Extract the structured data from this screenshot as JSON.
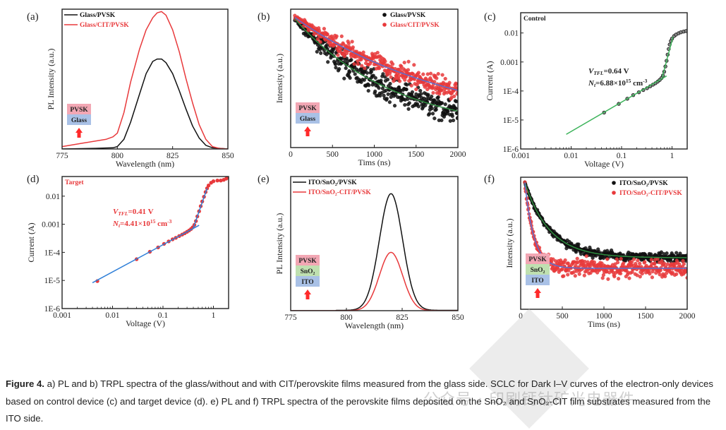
{
  "figure_caption": {
    "label": "Figure 4.",
    "text": " a) PL and b) TRPL spectra of the glass/without and with CIT/perovskite films measured from the glass side. SCLC for Dark I–V curves of the electron-only devices based on control device (c) and target device (d). e) PL and f) TRPL spectra of the perovskite films deposited on the SnO₂ and SnO₂-CIT film substrates measured from the ITO side."
  },
  "watermark": "公众号 · 印刷钙钛矿光电器件",
  "colors": {
    "black": "#111111",
    "red": "#e8393b",
    "green": "#2e8b3e",
    "blue": "#5a6fd0",
    "fit_green": "#3cb35a",
    "fit_blue": "#2f7fd8",
    "pvsk": "#f2a7b4",
    "glass": "#a9c1e6",
    "sno2": "#bfe0b0",
    "ito": "#a9c1e6",
    "arrow": "#ff2a2a"
  },
  "chart_data": [
    {
      "id": "a",
      "panel_label": "(a)",
      "type": "line",
      "xlabel": "Wavelength (nm)",
      "ylabel": "PL Intensity (a.u.)",
      "xlim": [
        775,
        850
      ],
      "ylim": [
        0,
        1.15
      ],
      "xticks": [
        775,
        800,
        825,
        850
      ],
      "legend": {
        "position": "top-left",
        "entries": [
          "Glass/PVSK",
          "Glass/CIT/PVSK"
        ]
      },
      "stack": {
        "layers": [
          "PVSK",
          "Glass"
        ]
      },
      "series": [
        {
          "name": "Glass/PVSK",
          "color": "black",
          "x": [
            775,
            790,
            798,
            800,
            803,
            806,
            810,
            813,
            816,
            818,
            820,
            822,
            825,
            828,
            831,
            834,
            837,
            840,
            843,
            850
          ],
          "y": [
            0,
            0.005,
            0.01,
            0.02,
            0.08,
            0.22,
            0.45,
            0.62,
            0.72,
            0.74,
            0.74,
            0.71,
            0.62,
            0.48,
            0.33,
            0.19,
            0.09,
            0.03,
            0.01,
            0
          ]
        },
        {
          "name": "Glass/CIT/PVSK",
          "color": "red",
          "x": [
            775,
            785,
            795,
            798,
            800,
            803,
            806,
            810,
            813,
            816,
            818,
            820,
            822,
            825,
            828,
            831,
            834,
            837,
            840,
            843,
            846,
            850
          ],
          "y": [
            0.02,
            0.05,
            0.08,
            0.1,
            0.13,
            0.3,
            0.55,
            0.82,
            0.98,
            1.08,
            1.12,
            1.13,
            1.1,
            0.98,
            0.8,
            0.58,
            0.38,
            0.2,
            0.08,
            0.02,
            0.005,
            0
          ]
        }
      ]
    },
    {
      "id": "b",
      "panel_label": "(b)",
      "type": "scatter",
      "xlabel": "Tims (ns)",
      "ylabel": "Intensity (a.u.)",
      "xlim": [
        0,
        2000
      ],
      "ylim": [
        0,
        1
      ],
      "xticks": [
        0,
        500,
        1000,
        1500,
        2000
      ],
      "legend": {
        "position": "top-right",
        "entries": [
          "Glass/PVSK",
          "Glass/CIT/PVSK"
        ]
      },
      "stack": {
        "layers": [
          "PVSK",
          "Glass"
        ]
      },
      "series": [
        {
          "name": "Glass/PVSK",
          "color": "black",
          "fit_color": "green",
          "t0": 50,
          "y0": 0.93,
          "tau": 1200,
          "yinf": 0.1,
          "noise": 0.06
        },
        {
          "name": "Glass/CIT/PVSK",
          "color": "red",
          "fit_color": "blue",
          "t0": 50,
          "y0": 0.94,
          "tau": 1900,
          "yinf": 0.12,
          "noise": 0.05
        }
      ]
    },
    {
      "id": "c",
      "panel_label": "(c)",
      "type": "scatter",
      "tag": "Control",
      "xlabel": "Voltage (V)",
      "ylabel": "Current (A)",
      "xscale": "log",
      "yscale": "log",
      "xlim": [
        0.001,
        2
      ],
      "ylim": [
        1e-06,
        0.05
      ],
      "xticks": [
        "0.001",
        "0.01",
        "0.1",
        "1"
      ],
      "yticks": [
        "1E-6",
        "1E-5",
        "1E-4",
        "0.001",
        "0.01"
      ],
      "annotation": {
        "vtfl": "=0.64 V",
        "vtfl_sym": "V",
        "vtfl_sub": "TFL",
        "nt_sym": "N",
        "nt_sub": "t",
        "nt_val": "=6.88×10",
        "nt_exp": "15",
        "nt_unit": " cm",
        "nt_unit_exp": "-3"
      },
      "points_color": "black",
      "fit_color": "fit_green",
      "points": [
        [
          0.045,
          1.8e-05
        ],
        [
          0.088,
          3.6e-05
        ],
        [
          0.13,
          5.4e-05
        ],
        [
          0.17,
          7.2e-05
        ],
        [
          0.22,
          9e-05
        ],
        [
          0.27,
          0.000108
        ],
        [
          0.32,
          0.000125
        ],
        [
          0.37,
          0.000145
        ],
        [
          0.42,
          0.000165
        ],
        [
          0.47,
          0.000185
        ],
        [
          0.52,
          0.00021
        ],
        [
          0.57,
          0.00024
        ],
        [
          0.62,
          0.00028
        ],
        [
          0.66,
          0.00034
        ],
        [
          0.7,
          0.00046
        ],
        [
          0.74,
          0.0007
        ],
        [
          0.78,
          0.0011
        ],
        [
          0.82,
          0.0018
        ],
        [
          0.86,
          0.0028
        ],
        [
          0.9,
          0.004
        ],
        [
          0.95,
          0.0053
        ],
        [
          1.0,
          0.0064
        ],
        [
          1.1,
          0.0078
        ],
        [
          1.2,
          0.0088
        ],
        [
          1.35,
          0.0098
        ],
        [
          1.5,
          0.0106
        ],
        [
          1.7,
          0.0112
        ],
        [
          1.9,
          0.0117
        ]
      ],
      "fits": [
        {
          "x": [
            0.008,
            0.78
          ],
          "y": [
            3.2e-06,
            0.00033
          ]
        },
        {
          "x": [
            0.64,
            1.05
          ],
          "y": [
            0.0003,
            0.0075
          ]
        }
      ]
    },
    {
      "id": "d",
      "panel_label": "(d)",
      "type": "scatter",
      "tag": "Target",
      "xlabel": "Voltage (V)",
      "ylabel": "Current (A)",
      "xscale": "log",
      "yscale": "log",
      "xlim": [
        0.001,
        2
      ],
      "ylim": [
        1e-06,
        0.05
      ],
      "xticks": [
        "0.001",
        "0.01",
        "0.1",
        "1"
      ],
      "yticks": [
        "1E-6",
        "1E-5",
        "1E-4",
        "0.001",
        "0.01"
      ],
      "annotation": {
        "vtfl": "=0.41 V",
        "vtfl_sym": "V",
        "vtfl_sub": "TFL",
        "nt_sym": "N",
        "nt_sub": "t",
        "nt_val": "=4.41×10",
        "nt_exp": "15",
        "nt_unit": " cm",
        "nt_unit_exp": "-3"
      },
      "points_color": "red",
      "fit_color": "fit_blue",
      "points": [
        [
          0.005,
          9.5e-06
        ],
        [
          0.03,
          5.7e-05
        ],
        [
          0.055,
          0.000105
        ],
        [
          0.08,
          0.00015
        ],
        [
          0.105,
          0.0002
        ],
        [
          0.13,
          0.000245
        ],
        [
          0.155,
          0.00029
        ],
        [
          0.18,
          0.00033
        ],
        [
          0.21,
          0.00038
        ],
        [
          0.24,
          0.00043
        ],
        [
          0.27,
          0.00048
        ],
        [
          0.3,
          0.00054
        ],
        [
          0.33,
          0.0006
        ],
        [
          0.36,
          0.00068
        ],
        [
          0.39,
          0.00078
        ],
        [
          0.42,
          0.00095
        ],
        [
          0.45,
          0.0013
        ],
        [
          0.48,
          0.0019
        ],
        [
          0.52,
          0.0029
        ],
        [
          0.56,
          0.0044
        ],
        [
          0.6,
          0.0065
        ],
        [
          0.65,
          0.0095
        ],
        [
          0.7,
          0.014
        ],
        [
          0.75,
          0.019
        ],
        [
          0.8,
          0.024
        ],
        [
          0.9,
          0.03
        ],
        [
          1.0,
          0.034
        ],
        [
          1.2,
          0.036
        ],
        [
          1.4,
          0.036
        ],
        [
          1.6,
          0.038
        ],
        [
          1.8,
          0.042
        ],
        [
          1.95,
          0.047
        ]
      ],
      "fits": [
        {
          "x": [
            0.004,
            0.52
          ],
          "y": [
            8.3e-06,
            0.00092
          ]
        },
        {
          "x": [
            0.4,
            0.75
          ],
          "y": [
            0.00075,
            0.019
          ]
        }
      ]
    },
    {
      "id": "e",
      "panel_label": "(e)",
      "type": "line",
      "xlabel": "Wavelength (nm)",
      "ylabel": "PL Intensity (a.u.)",
      "xlim": [
        775,
        850
      ],
      "ylim": [
        0,
        1.15
      ],
      "xticks": [
        775,
        800,
        825,
        850
      ],
      "legend": {
        "position": "top-left",
        "entries": [
          "ITO/SnO₂/PVSK",
          "ITO/SnO₂-CIT/PVSK"
        ]
      },
      "stack": {
        "layers": [
          "PVSK",
          "SnO₂",
          "ITO"
        ]
      },
      "series": [
        {
          "name": "ITO/SnO₂/PVSK",
          "color": "black",
          "center": 820,
          "sigma": 5.2,
          "amp": 1.0,
          "base": 0.003
        },
        {
          "name": "ITO/SnO₂-CIT/PVSK",
          "color": "red",
          "center": 820,
          "sigma": 5.2,
          "amp": 0.5,
          "base": 0.0
        }
      ]
    },
    {
      "id": "f",
      "panel_label": "(f)",
      "type": "scatter",
      "xlabel": "Tims (ns)",
      "ylabel": "Intensity (a.u.)",
      "xlim": [
        0,
        2000
      ],
      "ylim": [
        0,
        1
      ],
      "xticks": [
        0,
        500,
        1000,
        1500,
        2000
      ],
      "legend": {
        "position": "top-right",
        "entries": [
          "ITO/SnO₂/PVSK",
          "ITO/SnO₂-CIT/PVSK"
        ]
      },
      "stack": {
        "layers": [
          "PVSK",
          "SnO₂",
          "ITO"
        ]
      },
      "series": [
        {
          "name": "ITO/SnO₂/PVSK",
          "color": "black",
          "fit_color": "green",
          "t0": 50,
          "y0": 0.96,
          "tau": 300,
          "yinf": 0.39,
          "noise": 0.025
        },
        {
          "name": "ITO/SnO₂-CIT/PVSK",
          "color": "red",
          "fit_color": "blue",
          "t0": 50,
          "y0": 0.96,
          "tau": 110,
          "yinf": 0.31,
          "noise": 0.05
        }
      ]
    }
  ]
}
